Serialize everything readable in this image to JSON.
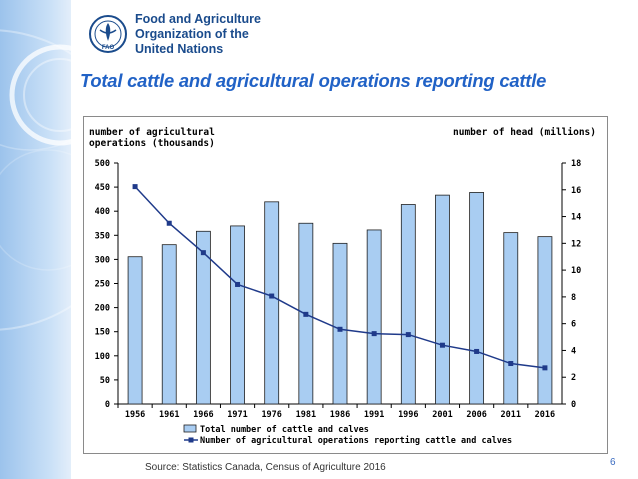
{
  "organization": {
    "name_line1": "Food and Agriculture",
    "name_line2": "Organization of the",
    "name_line3": "United Nations",
    "logo_text": "FAO"
  },
  "slide": {
    "title": "Total cattle and agricultural operations reporting cattle",
    "source": "Source: Statistics Canada, Census of Agriculture 2016",
    "page_number": "6"
  },
  "colors": {
    "bar_fill": "#a9cdf2",
    "bar_stroke": "#1f1f1f",
    "line": "#1f3a8a",
    "title": "#2162c6",
    "org_text": "#1a4b8c"
  },
  "chart_data": {
    "type": "bar",
    "categories": [
      "1956",
      "1961",
      "1966",
      "1971",
      "1976",
      "1981",
      "1986",
      "1991",
      "1996",
      "2001",
      "2006",
      "2011",
      "2016"
    ],
    "left_axis_label_line1": "number of agricultural",
    "left_axis_label_line2": "operations (thousands)",
    "right_axis_label": "number of head (millions)",
    "left_ylim": [
      0,
      500
    ],
    "left_ticks": [
      0,
      50,
      100,
      150,
      200,
      250,
      300,
      350,
      400,
      450,
      500
    ],
    "right_ylim": [
      0,
      18
    ],
    "right_ticks": [
      0,
      2,
      4,
      6,
      8,
      10,
      12,
      14,
      16,
      18
    ],
    "legend_placement": "bottom",
    "grid": false,
    "series": [
      {
        "name": "Total number of cattle and calves",
        "type": "bar",
        "axis": "right",
        "values": [
          11.0,
          11.9,
          12.9,
          13.3,
          15.1,
          13.5,
          12.0,
          13.0,
          14.9,
          15.6,
          15.8,
          12.8,
          12.5
        ]
      },
      {
        "name": "Number of agricultural operations reporting cattle and calves",
        "type": "line",
        "axis": "left",
        "values": [
          451,
          375,
          314,
          248,
          224,
          186,
          155,
          146,
          144,
          122,
          109,
          84,
          75
        ]
      }
    ]
  }
}
